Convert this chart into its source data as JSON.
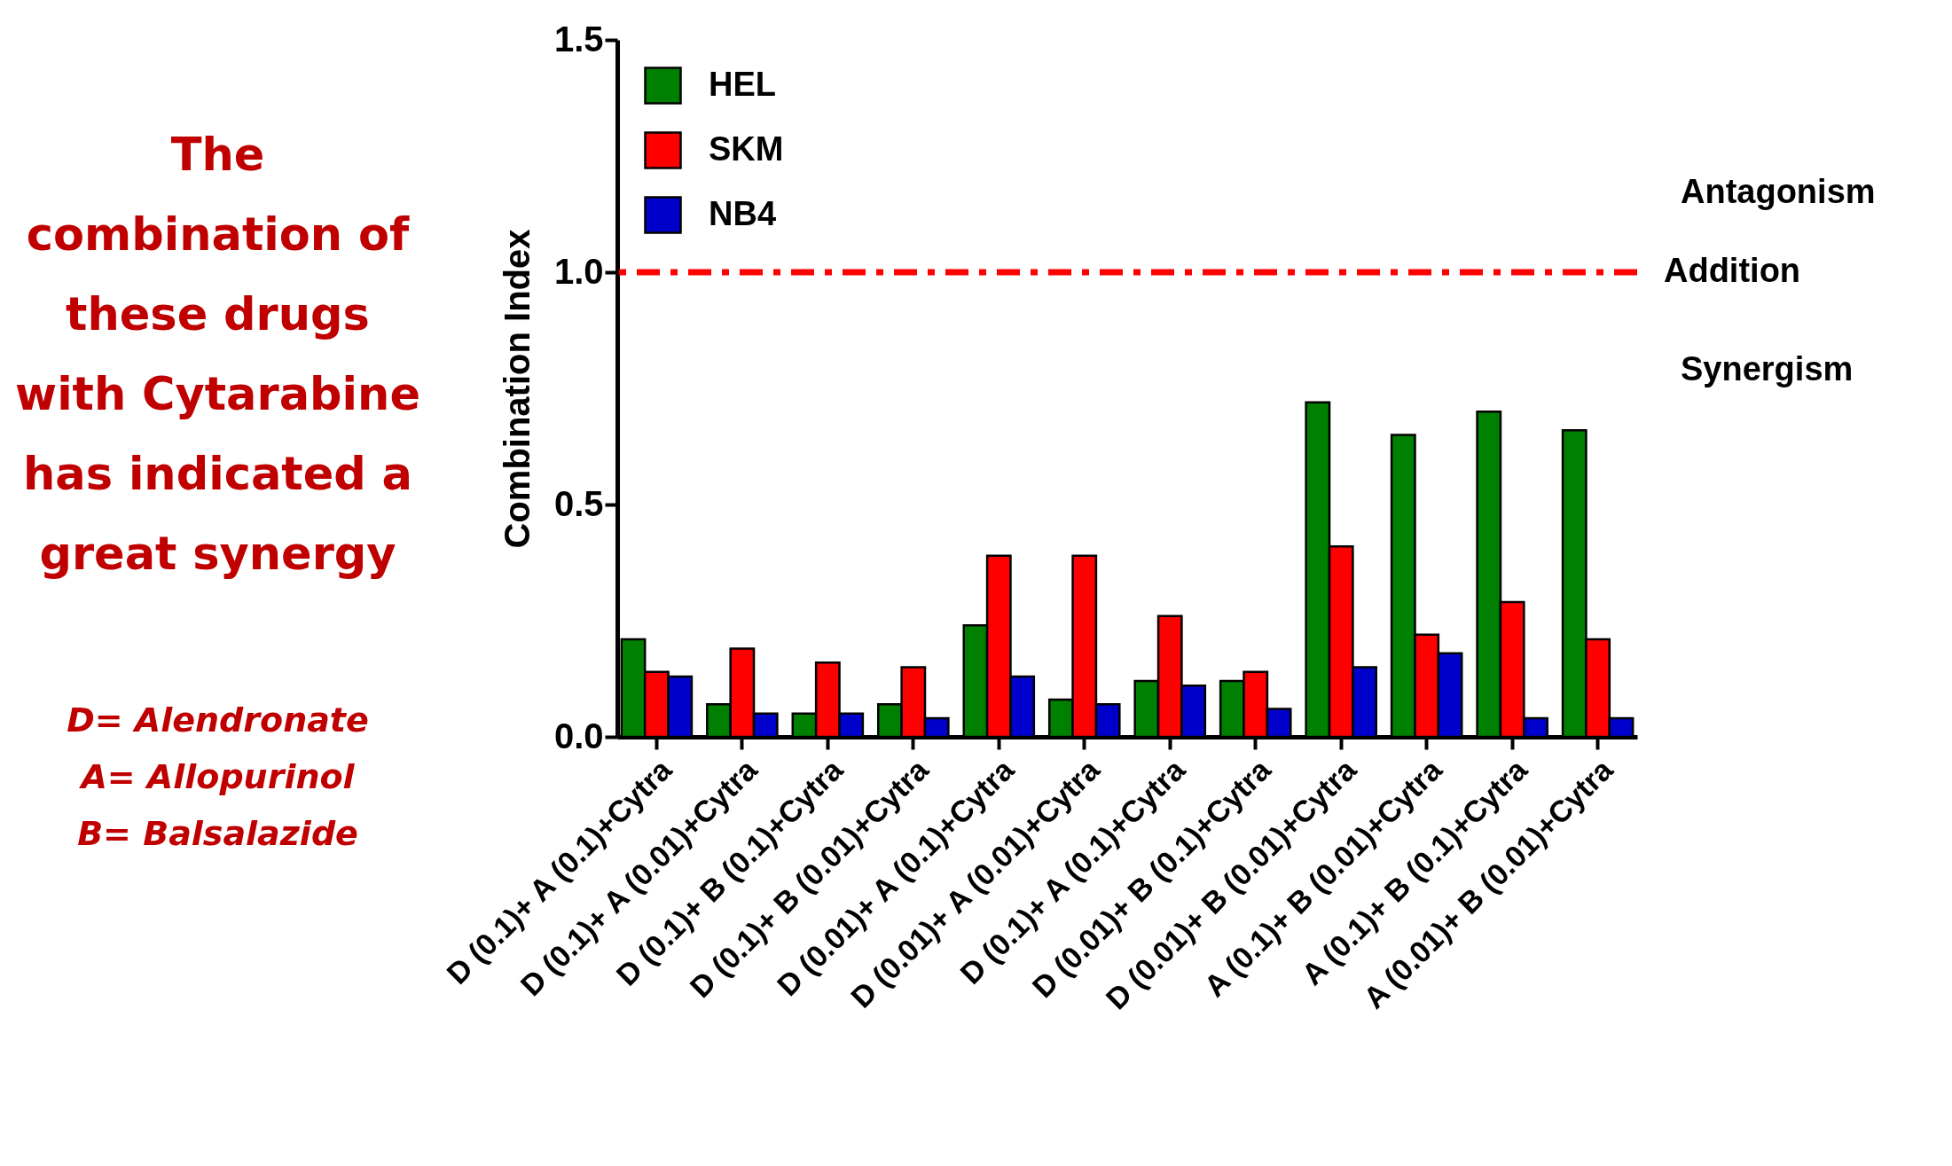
{
  "chart_data": {
    "type": "bar",
    "ylabel": "Combination Index",
    "categories": [
      "D (0.1)+ A (0.1)+Cytra",
      "D (0.1)+ A (0.01)+Cytra",
      "D (0.1)+ B (0.1)+Cytra",
      "D (0.1)+ B (0.01)+Cytra",
      "D (0.01)+ A (0.1)+Cytra",
      "D (0.01)+ A (0.01)+Cytra",
      "D (0.1)+ A (0.1)+Cytra",
      "D (0.01)+ B (0.1)+Cytra",
      "D (0.01)+ B (0.01)+Cytra",
      "A (0.1)+ B (0.01)+Cytra",
      "A (0.1)+ B (0.1)+Cytra",
      "A (0.01)+ B (0.01)+Cytra"
    ],
    "series": [
      {
        "name": "HEL",
        "color": "#008000",
        "values": [
          0.21,
          0.07,
          0.05,
          0.07,
          0.24,
          0.08,
          0.12,
          0.12,
          0.72,
          0.65,
          0.7,
          0.66
        ]
      },
      {
        "name": "SKM",
        "color": "#ff0000",
        "values": [
          0.14,
          0.19,
          0.16,
          0.15,
          0.39,
          0.39,
          0.26,
          0.14,
          0.41,
          0.22,
          0.29,
          0.21
        ]
      },
      {
        "name": "NB4",
        "color": "#0000cc",
        "values": [
          0.13,
          0.05,
          0.05,
          0.04,
          0.13,
          0.07,
          0.11,
          0.06,
          0.15,
          0.18,
          0.04,
          0.04
        ]
      }
    ],
    "ylim": [
      0,
      1.5
    ],
    "yticks": [
      {
        "value": 0,
        "label": "0.0"
      },
      0.5,
      {
        "value": 1,
        "label": "1.0"
      },
      1.5
    ],
    "ref_lines": [
      {
        "axis": "y",
        "value": 1,
        "label": "Addition",
        "color": "#ff0000",
        "line_style": "dashed"
      }
    ],
    "annotations": [
      "The combination of these drugs with Cytarabine has indicated a great synergy",
      "D= Alendronate",
      "A= Allopurinol",
      "B= Balsalazide",
      "Antagonism",
      "Synergism"
    ],
    "legend": "top left",
    "grid": false
  }
}
